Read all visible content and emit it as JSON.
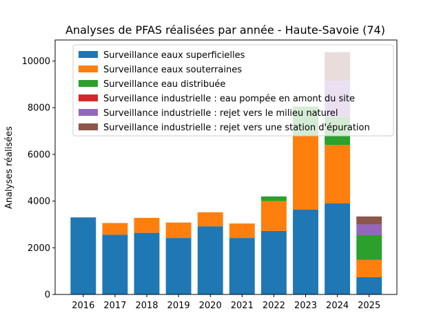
{
  "chart_data": {
    "type": "bar",
    "stacked": true,
    "title": "Analyses de PFAS réalisées par année - Haute-Savoie (74)",
    "xlabel": "",
    "ylabel": "Analyses réalisées",
    "ylim": [
      0,
      10900
    ],
    "yticks": [
      0,
      2000,
      4000,
      6000,
      8000,
      10000
    ],
    "categories": [
      "2016",
      "2017",
      "2018",
      "2019",
      "2020",
      "2021",
      "2022",
      "2023",
      "2024",
      "2025"
    ],
    "legend_position": "top-left",
    "series": [
      {
        "name": "Surveillance eaux superficielles",
        "color": "#1f77b4",
        "values": [
          3300,
          2560,
          2640,
          2420,
          2920,
          2420,
          2720,
          3640,
          3900,
          740
        ]
      },
      {
        "name": "Surveillance eaux souterraines",
        "color": "#ff7f0e",
        "values": [
          0,
          500,
          640,
          660,
          600,
          620,
          1280,
          3160,
          2500,
          740
        ]
      },
      {
        "name": "Surveillance eau distribuée",
        "color": "#2ca02c",
        "values": [
          0,
          0,
          0,
          0,
          0,
          0,
          200,
          1250,
          1200,
          1060
        ]
      },
      {
        "name": "Surveillance industrielle : eau pompée en amont du site",
        "color": "#d62728",
        "values": [
          0,
          0,
          0,
          0,
          0,
          0,
          0,
          0,
          0,
          0
        ]
      },
      {
        "name": "Surveillance industrielle : rejet vers le milieu naturel",
        "color": "#9467bd",
        "values": [
          0,
          0,
          0,
          0,
          0,
          0,
          0,
          0,
          1550,
          460
        ]
      },
      {
        "name": "Surveillance industrielle : rejet vers une station d'épuration",
        "color": "#8c564b",
        "values": [
          0,
          0,
          0,
          0,
          0,
          0,
          0,
          0,
          1230,
          340
        ]
      }
    ]
  }
}
